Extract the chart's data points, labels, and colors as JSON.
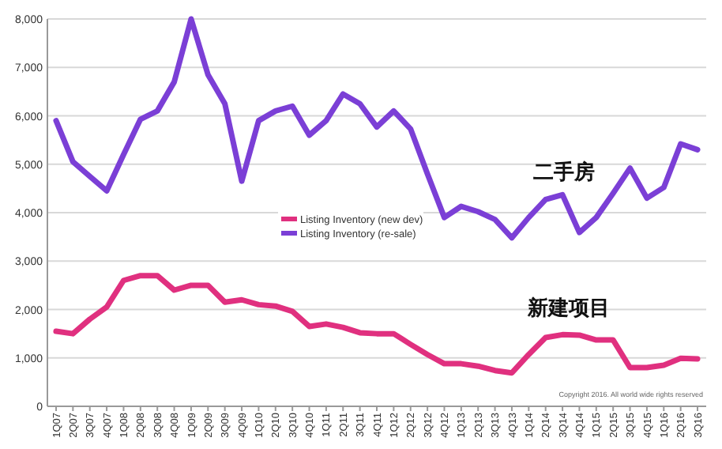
{
  "chart_data": {
    "type": "line",
    "categories": [
      "1Q07",
      "2Q07",
      "3Q07",
      "4Q07",
      "1Q08",
      "2Q08",
      "3Q08",
      "4Q08",
      "1Q09",
      "2Q09",
      "3Q09",
      "4Q09",
      "1Q10",
      "2Q10",
      "3Q10",
      "4Q10",
      "1Q11",
      "2Q11",
      "3Q11",
      "4Q11",
      "1Q12",
      "2Q12",
      "3Q12",
      "4Q12",
      "1Q13",
      "2Q13",
      "3Q13",
      "4Q13",
      "1Q14",
      "2Q14",
      "3Q14",
      "4Q14",
      "1Q15",
      "2Q15",
      "3Q15",
      "4Q15",
      "1Q16",
      "2Q16",
      "3Q16"
    ],
    "series": [
      {
        "name": "Listing Inventory (new dev)",
        "color": "#e0307f",
        "values": [
          1550,
          1500,
          1800,
          2050,
          2600,
          2700,
          2700,
          2400,
          2500,
          2500,
          2150,
          2200,
          2100,
          2070,
          1960,
          1650,
          1700,
          1630,
          1520,
          1500,
          1500,
          1280,
          1070,
          880,
          880,
          830,
          740,
          690,
          1070,
          1420,
          1480,
          1470,
          1370,
          1370,
          800,
          800,
          850,
          990,
          980
        ]
      },
      {
        "name": "Listing Inventory (re-sale)",
        "color": "#7b3fd6",
        "values": [
          5900,
          5050,
          4750,
          4450,
          5200,
          5930,
          6100,
          6700,
          8000,
          6850,
          6250,
          4650,
          5900,
          6100,
          6200,
          5600,
          5900,
          6450,
          6250,
          5770,
          6100,
          5730,
          4800,
          3900,
          4130,
          4020,
          3860,
          3480,
          3900,
          4270,
          4370,
          3590,
          3900,
          4400,
          4920,
          4300,
          4520,
          5420,
          5300
        ]
      }
    ],
    "ylim": [
      0,
      8000
    ],
    "yticks": [
      {
        "value": 0,
        "label": "0"
      },
      {
        "value": 1000,
        "label": "1,000"
      },
      {
        "value": 2000,
        "label": "2,000"
      },
      {
        "value": 3000,
        "label": "3,000"
      },
      {
        "value": 4000,
        "label": "4,000"
      },
      {
        "value": 5000,
        "label": "5,000"
      },
      {
        "value": 6000,
        "label": "6,000"
      },
      {
        "value": 7000,
        "label": "7,000"
      },
      {
        "value": 8000,
        "label": "8,000"
      }
    ],
    "grid": "y",
    "legend": "center",
    "marker": "none",
    "line_style": "solid",
    "annotations": [
      "二手房",
      "新建项目",
      "Copyright 2016. All world wide rights reserved"
    ]
  }
}
